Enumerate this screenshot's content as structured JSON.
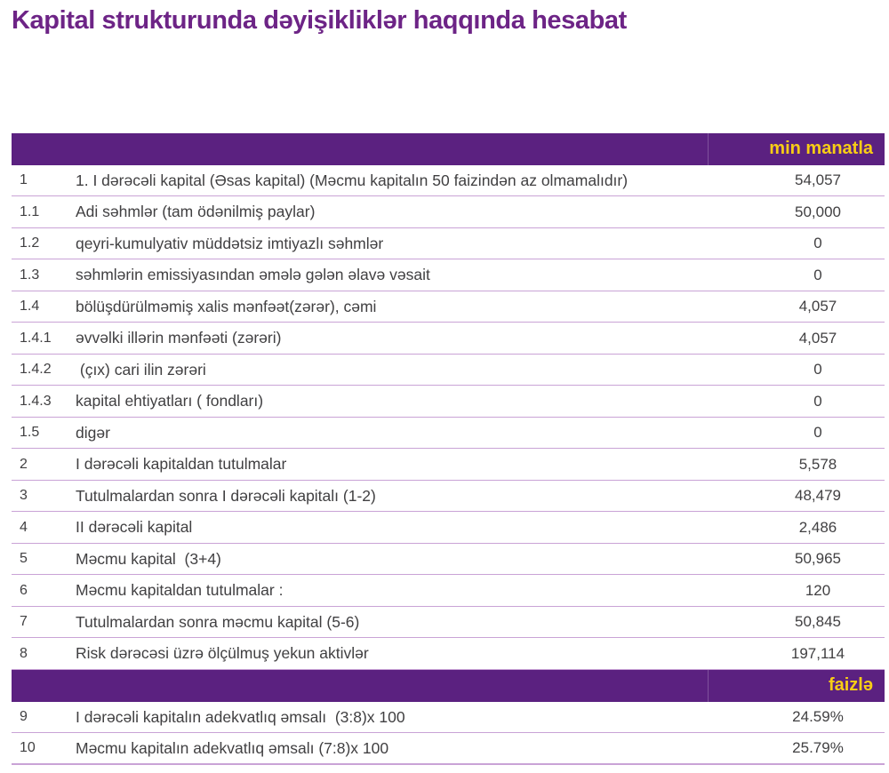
{
  "title": "Kapital strukturunda dəyişikliklər haqqında hesabat",
  "colors": {
    "band_purple": "#5b2180",
    "title_purple": "#6d2486",
    "band_label_yellow": "#f8cd15",
    "row_line_lavender": "#c9a3d6",
    "body_text": "#414042"
  },
  "table": {
    "sections": [
      {
        "band_label": "min manatla",
        "rows": [
          {
            "num": "1",
            "label": "1. I dərəcəli kapital (Əsas kapital) (Məcmu kapitalın 50 faizindən az olmamalıdır)",
            "value": "54,057"
          },
          {
            "num": "1.1",
            "label": "Adi səhmlər (tam ödənilmiş paylar)",
            "value": "50,000"
          },
          {
            "num": "1.2",
            "label": "qeyri-kumulyativ müddətsiz imtiyazlı səhmlər",
            "value": "0"
          },
          {
            "num": "1.3",
            "label": "səhmlərin emissiyasından əmələ gələn əlavə vəsait",
            "value": "0"
          },
          {
            "num": "1.4",
            "label": "bölüşdürülməmiş xalis mənfəət(zərər), cəmi",
            "value": "4,057"
          },
          {
            "num": "1.4.1",
            "label": "əvvəlki illərin mənfəəti (zərəri)",
            "value": "4,057"
          },
          {
            "num": "1.4.2",
            "label": " (çıx) cari ilin zərəri",
            "value": "0"
          },
          {
            "num": "1.4.3",
            "label": "kapital ehtiyatları ( fondları)",
            "value": "0"
          },
          {
            "num": "1.5",
            "label": "digər",
            "value": "0"
          },
          {
            "num": "2",
            "label": "I dərəcəli kapitaldan tutulmalar",
            "value": "5,578"
          },
          {
            "num": "3",
            "label": "Tutulmalardan sonra I dərəcəli kapitalı (1-2)",
            "value": "48,479"
          },
          {
            "num": "4",
            "label": "II dərəcəli kapital",
            "value": "2,486"
          },
          {
            "num": "5",
            "label": "Məcmu kapital  (3+4)",
            "value": "50,965"
          },
          {
            "num": "6",
            "label": "Məcmu kapitaldan tutulmalar :",
            "value": "120"
          },
          {
            "num": "7",
            "label": "Tutulmalardan sonra məcmu kapital (5-6)",
            "value": "50,845"
          },
          {
            "num": "8",
            "label": "Risk dərəcəsi üzrə ölçülmuş yekun aktivlər",
            "value": "197,114"
          }
        ]
      },
      {
        "band_label": "faizlə",
        "rows": [
          {
            "num": "9",
            "label": "I dərəcəli kapitalın adekvatlıq əmsalı  (3:8)x 100",
            "value": "24.59%"
          },
          {
            "num": "10",
            "label": "Məcmu kapitalın adekvatlıq əmsalı (7:8)x 100",
            "value": "25.79%"
          }
        ]
      }
    ]
  }
}
